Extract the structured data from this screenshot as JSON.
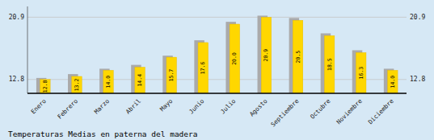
{
  "chart_data": {
    "type": "bar",
    "title": "Temperaturas Medias en paterna del madera",
    "categories": [
      "Enero",
      "Febrero",
      "Marzo",
      "Abril",
      "Mayo",
      "Junio",
      "Julio",
      "Agosto",
      "Septiembre",
      "Octubre",
      "Noviembre",
      "Diciembre"
    ],
    "series": [
      {
        "color": "#AAAAAA",
        "values": [
          13.0,
          13.5,
          14.2,
          14.7,
          15.9,
          17.9,
          20.3,
          21.1,
          20.8,
          18.8,
          16.6,
          14.2
        ]
      },
      {
        "color": "#FFD700",
        "values": [
          12.8,
          13.2,
          14.0,
          14.4,
          15.7,
          17.6,
          20.0,
          20.9,
          20.5,
          18.5,
          16.3,
          14.0
        ],
        "value_labels": [
          "12.8",
          "13.2",
          "14.0",
          "14.4",
          "15.7",
          "17.6",
          "20.0",
          "20.9",
          "20.5",
          "18.5",
          "16.3",
          "14.0"
        ],
        "data_labels": true
      }
    ],
    "ylim": [
      11.0,
      22.3
    ],
    "yticks": [
      12.8,
      20.9
    ],
    "y2lim": [
      11.0,
      22.3
    ],
    "y2ticks": [
      12.8,
      20.9
    ],
    "grid": true
  }
}
